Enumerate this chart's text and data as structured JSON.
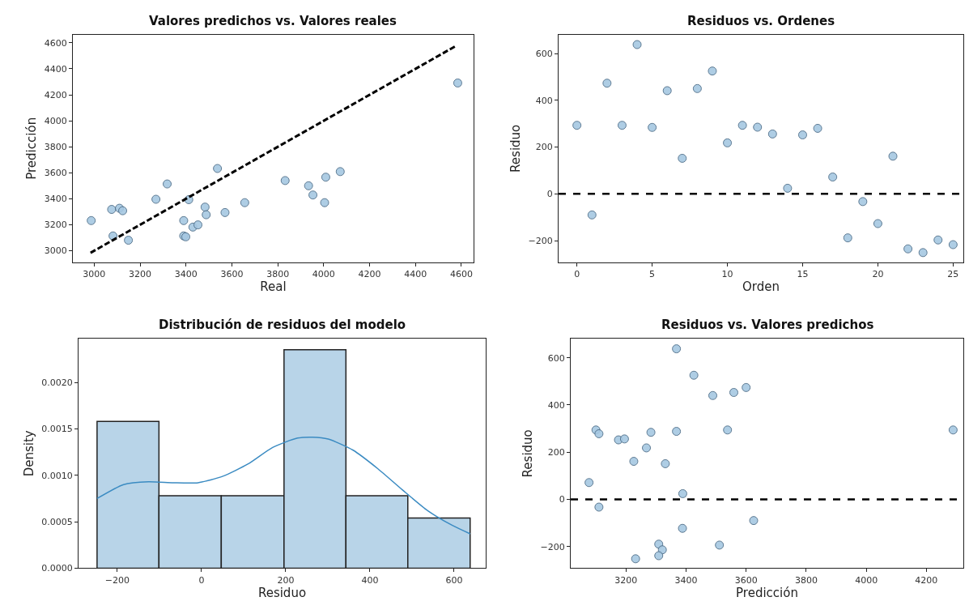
{
  "chart_data": [
    {
      "type": "scatter",
      "title": "Valores predichos vs. Valores reales",
      "xlabel": "Real",
      "ylabel": "Predicción",
      "xlim": [
        2907,
        4653
      ],
      "ylim": [
        2910,
        4664
      ],
      "xticks": [
        3000,
        3200,
        3400,
        3600,
        3800,
        4000,
        4200,
        4400,
        4600
      ],
      "yticks": [
        3000,
        3200,
        3400,
        3600,
        3800,
        4000,
        4200,
        4400,
        4600
      ],
      "series": [
        {
          "type": "scatter",
          "marker": "circle",
          "color": "#a6c8e2",
          "x": [
            2987,
            3076,
            3110,
            3124,
            3082,
            3149,
            3269,
            3318,
            3390,
            3390,
            3399,
            3412,
            3430,
            3452,
            3483,
            3488,
            3537,
            3570,
            3656,
            3832,
            3934,
            3953,
            4004,
            4009,
            4072,
            4584
          ],
          "values": [
            3232,
            3318,
            3327,
            3308,
            3114,
            3081,
            3396,
            3514,
            3232,
            3114,
            3107,
            3393,
            3182,
            3199,
            3336,
            3277,
            3633,
            3294,
            3370,
            3540,
            3500,
            3429,
            3370,
            3566,
            3609,
            4291
          ]
        },
        {
          "type": "line",
          "marker": "none",
          "line_style": "dashed",
          "color": "#000000",
          "x": [
            2984,
            4580
          ],
          "values": [
            2984,
            4580
          ]
        }
      ]
    },
    {
      "type": "scatter",
      "title": "Residuos vs. Ordenes",
      "xlabel": "Orden",
      "ylabel": "Residuo",
      "xlim": [
        -1.22,
        25.68
      ],
      "ylim": [
        -293,
        681
      ],
      "xticks": [
        0,
        5,
        10,
        15,
        20,
        25
      ],
      "yticks": [
        {
          "value": -200,
          "label": "−200"
        },
        0,
        200,
        400,
        600
      ],
      "ref_lines": [
        {
          "axis": "y",
          "value": 0,
          "label": null,
          "color": "#000000",
          "line_style": "dashed"
        }
      ],
      "series": [
        {
          "type": "scatter",
          "marker": "circle",
          "color": "#a6c8e2",
          "x": [
            0,
            1,
            2,
            3,
            4,
            5,
            6,
            7,
            8,
            9,
            10,
            11,
            12,
            13,
            14,
            15,
            16,
            17,
            18,
            19,
            20,
            21,
            22,
            23,
            24,
            25
          ],
          "values": [
            293,
            -90,
            473,
            293,
            638,
            284,
            441,
            152,
            450,
            525,
            218,
            293,
            285,
            256,
            24,
            252,
            280,
            72,
            -188,
            -33,
            -127,
            161,
            -235,
            -251,
            -197,
            -217
          ]
        }
      ]
    },
    {
      "type": "histogram",
      "title": "Distribución de residuos del modelo",
      "xlabel": "Residuo",
      "ylabel": "Density",
      "xlim": [
        -292,
        675
      ],
      "ylim": [
        0,
        0.00247
      ],
      "xticks": [
        {
          "value": -200,
          "label": "−200"
        },
        0,
        200,
        400,
        600
      ],
      "yticks": [
        {
          "value": 0,
          "label": "0.0000"
        },
        {
          "value": 0.0005,
          "label": "0.0005"
        },
        {
          "value": 0.001,
          "label": "0.0010"
        },
        {
          "value": 0.0015,
          "label": "0.0015"
        },
        {
          "value": 0.002,
          "label": "0.0020"
        }
      ],
      "color": "#b8d4e8",
      "bins": [
        -248,
        -101,
        47,
        196,
        343,
        490,
        638
      ],
      "values": [
        0.00158,
        0.00078,
        0.00078,
        0.00235,
        0.00078,
        0.00054
      ],
      "series": [
        {
          "type": "line",
          "marker": "none",
          "color": "#3b8bc2",
          "x": [
            -248,
            -185,
            -126,
            -67,
            -8,
            51,
            110,
            169,
            228,
            264,
            301,
            360,
            419,
            478,
            537,
            596,
            638
          ],
          "values": [
            0.00075,
            0.0009,
            0.00093,
            0.00092,
            0.00092,
            0.00099,
            0.00112,
            0.0013,
            0.0014,
            0.00141,
            0.00139,
            0.00127,
            0.00107,
            0.00084,
            0.00062,
            0.00046,
            0.00037
          ]
        }
      ]
    },
    {
      "type": "scatter",
      "title": "Residuos vs. Valores predichos",
      "xlabel": "Predicción",
      "ylabel": "Residuo",
      "xlim": [
        3016,
        4323
      ],
      "ylim": [
        -292,
        681
      ],
      "xticks": [
        3200,
        3400,
        3600,
        3800,
        4000,
        4200
      ],
      "yticks": [
        {
          "value": -200,
          "label": "−200"
        },
        0,
        200,
        400,
        600
      ],
      "ref_lines": [
        {
          "axis": "y",
          "value": 0,
          "label": null,
          "color": "#000000",
          "line_style": "dashed"
        }
      ],
      "series": [
        {
          "type": "scatter",
          "marker": "circle",
          "color": "#a6c8e2",
          "x": [
            3368,
            3426,
            3489,
            3559,
            3600,
            3100,
            3110,
            3175,
            3195,
            3283,
            3368,
            3538,
            4289,
            3268,
            3226,
            3331,
            3077,
            3389,
            3110,
            3388,
            3625,
            3309,
            3511,
            3321,
            3309,
            3232
          ],
          "values": [
            638,
            526,
            440,
            453,
            474,
            294,
            278,
            252,
            256,
            284,
            288,
            294,
            294,
            218,
            161,
            151,
            71,
            24,
            -33,
            -123,
            -90,
            -190,
            -194,
            -214,
            -239,
            -252
          ]
        }
      ]
    }
  ]
}
